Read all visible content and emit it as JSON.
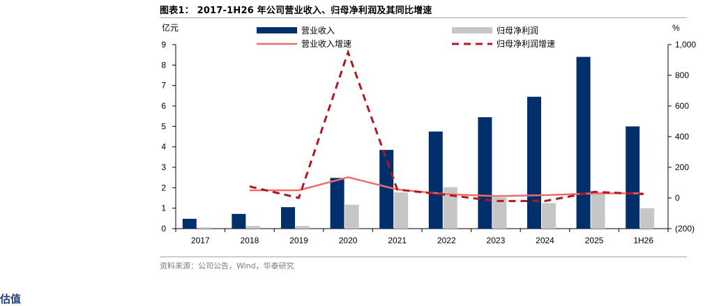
{
  "figure": {
    "title": "图表1： 2017-1H26 年公司营业收入、归母净利润及其同比增速",
    "source": "资料来源：公司公告，Wind，华泰研究",
    "cut_heading": "估值"
  },
  "colors": {
    "revenue": "#002f6c",
    "profit": "#c6c6c6",
    "revenue_growth": "#f06a6a",
    "profit_growth": "#b01820",
    "rule": "#9aa7bd"
  },
  "chart_data": {
    "type": "bar",
    "categories": [
      "2017",
      "2018",
      "2019",
      "2020",
      "2021",
      "2022",
      "2023",
      "2024",
      "2025",
      "1H26"
    ],
    "left_axis": {
      "label": "亿元",
      "ylim": [
        0,
        9
      ],
      "ticks": [
        "0",
        "1",
        "2",
        "3",
        "4",
        "5",
        "6",
        "7",
        "8",
        "9"
      ]
    },
    "right_axis": {
      "label": "%",
      "ylim": [
        -200,
        1000
      ],
      "ticks": [
        "(200)",
        "0",
        "200",
        "400",
        "600",
        "800",
        "1,000"
      ]
    },
    "legend_placement": "top",
    "series": [
      {
        "name": "营业收入",
        "kind": "bar",
        "axis": "left",
        "values": [
          0.48,
          0.72,
          1.05,
          2.48,
          3.85,
          4.75,
          5.45,
          6.45,
          8.4,
          5.0
        ]
      },
      {
        "name": "归母净利润",
        "kind": "bar",
        "axis": "left",
        "values": [
          0.06,
          0.13,
          0.13,
          1.17,
          1.77,
          2.03,
          1.53,
          1.25,
          1.77,
          1.0
        ]
      },
      {
        "name": "营业收入增速",
        "kind": "line",
        "axis": "right",
        "style": "solid",
        "values": [
          null,
          50,
          50,
          135,
          55,
          25,
          12,
          18,
          30,
          30
        ]
      },
      {
        "name": "归母净利润增速",
        "kind": "line",
        "axis": "right",
        "style": "dashed",
        "values": [
          null,
          75,
          0,
          950,
          55,
          20,
          -20,
          -20,
          40,
          25
        ]
      }
    ]
  }
}
